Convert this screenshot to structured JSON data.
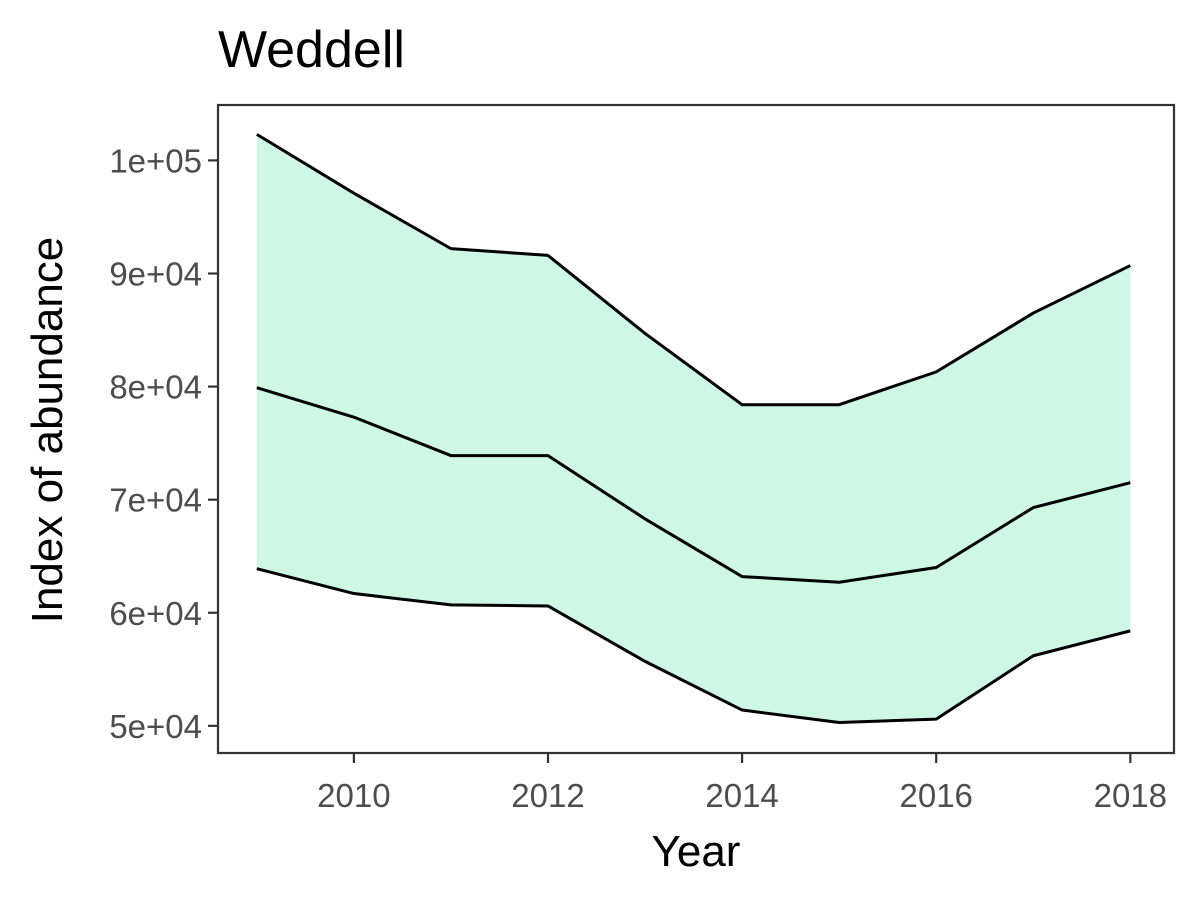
{
  "chart_data": {
    "type": "area",
    "title": "Weddell",
    "xlabel": "Year",
    "ylabel": "Index of abundance",
    "xlim": [
      2008.6,
      2018.45
    ],
    "ylim": [
      47600,
      104900
    ],
    "x_ticks": [
      2010,
      2012,
      2014,
      2016,
      2018
    ],
    "x_tick_labels": [
      "2010",
      "2012",
      "2014",
      "2016",
      "2018"
    ],
    "y_ticks": [
      50000,
      60000,
      70000,
      80000,
      90000,
      100000
    ],
    "y_tick_labels": [
      "5e+04",
      "6e+04",
      "7e+04",
      "8e+04",
      "9e+04",
      "1e+05"
    ],
    "x": [
      2009,
      2010,
      2011,
      2012,
      2013,
      2014,
      2015,
      2016,
      2017,
      2018
    ],
    "series": [
      {
        "role": "upper",
        "values": [
          102300,
          97100,
          92200,
          91600,
          84700,
          78400,
          78400,
          81300,
          86500,
          90700
        ]
      },
      {
        "role": "central",
        "values": [
          79900,
          77300,
          73900,
          73900,
          68300,
          63200,
          62700,
          64000,
          69300,
          71500
        ]
      },
      {
        "role": "lower",
        "values": [
          63900,
          61700,
          60700,
          60600,
          55700,
          51400,
          50300,
          50600,
          56200,
          58400
        ]
      }
    ],
    "ribbon_fill": "#cef7e5",
    "line_color": "#000000",
    "grid": false,
    "legend": "none"
  }
}
